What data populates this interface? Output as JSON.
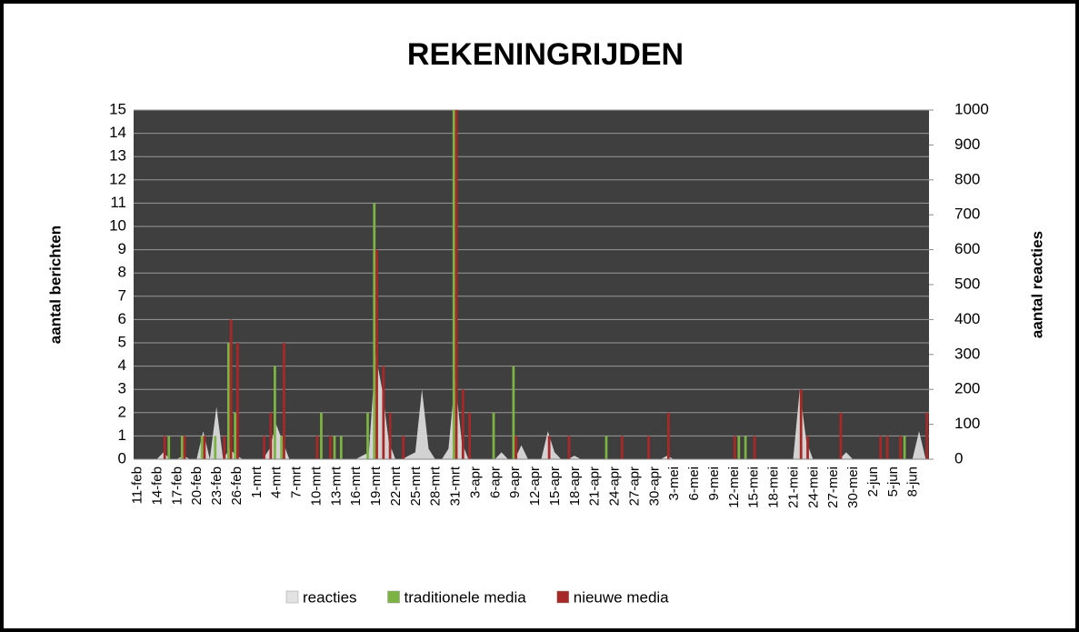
{
  "chart_data": {
    "type": "bar",
    "title": "REKENINGRIJDEN",
    "y_label": "aantal berichten",
    "y2_label": "aantal reacties",
    "categories": [
      "11-feb",
      null,
      null,
      "14-feb",
      null,
      null,
      "17-feb",
      null,
      null,
      "20-feb",
      null,
      null,
      "23-feb",
      null,
      null,
      "26-feb",
      null,
      null,
      "1-mrt",
      null,
      null,
      "4-mrt",
      null,
      null,
      "7-mrt",
      null,
      null,
      "10-mrt",
      null,
      null,
      "13-mrt",
      null,
      null,
      "16-mrt",
      null,
      null,
      "19-mrt",
      null,
      null,
      "22-mrt",
      null,
      null,
      "25-mrt",
      null,
      null,
      "28-mrt",
      null,
      null,
      "31-mrt",
      null,
      null,
      "3-apr",
      null,
      null,
      "6-apr",
      null,
      null,
      "9-apr",
      null,
      null,
      "12-apr",
      null,
      null,
      "15-apr",
      null,
      null,
      "18-apr",
      null,
      null,
      "21-apr",
      null,
      null,
      "24-apr",
      null,
      null,
      "27-apr",
      null,
      null,
      "30-apr",
      null,
      null,
      "3-mei",
      null,
      null,
      "6-mei",
      null,
      null,
      "9-mei",
      null,
      null,
      "12-mei",
      null,
      null,
      "15-mei",
      null,
      null,
      "18-mei",
      null,
      null,
      "21-mei",
      null,
      null,
      "24-mei",
      null,
      null,
      "27-mei",
      null,
      null,
      "30-mei",
      null,
      null,
      "2-jun",
      null,
      null,
      "5-jun",
      null,
      null,
      "8-jun",
      null,
      null
    ],
    "series": [
      {
        "name": "reacties",
        "color": "#e2e2e2",
        "axis": "y2",
        "values": [
          0,
          0,
          0,
          0,
          20,
          0,
          0,
          10,
          0,
          0,
          80,
          0,
          150,
          0,
          30,
          10,
          0,
          0,
          0,
          0,
          30,
          100,
          50,
          0,
          0,
          0,
          0,
          0,
          0,
          0,
          0,
          0,
          0,
          0,
          10,
          20,
          300,
          200,
          50,
          0,
          0,
          10,
          20,
          200,
          30,
          0,
          0,
          30,
          230,
          50,
          0,
          0,
          0,
          0,
          0,
          20,
          0,
          0,
          40,
          0,
          0,
          0,
          80,
          20,
          0,
          0,
          10,
          0,
          0,
          0,
          0,
          0,
          0,
          0,
          0,
          0,
          0,
          0,
          0,
          0,
          10,
          0,
          0,
          0,
          0,
          0,
          0,
          0,
          0,
          0,
          0,
          0,
          0,
          0,
          0,
          0,
          0,
          0,
          0,
          0,
          200,
          50,
          0,
          0,
          0,
          0,
          0,
          20,
          0,
          0,
          0,
          0,
          0,
          0,
          0,
          0,
          0,
          0,
          80,
          0
        ]
      },
      {
        "name": "traditionele media",
        "color": "#7cb342",
        "values": [
          0,
          0,
          0,
          0,
          0,
          1,
          0,
          1,
          0,
          0,
          1,
          0,
          1,
          0,
          5,
          2,
          0,
          0,
          0,
          0,
          0,
          4,
          1,
          0,
          0,
          0,
          0,
          0,
          2,
          0,
          1,
          1,
          0,
          0,
          0,
          2,
          11,
          0,
          0,
          0,
          0,
          0,
          0,
          0,
          0,
          0,
          0,
          0,
          15,
          0,
          0,
          0,
          0,
          0,
          2,
          0,
          0,
          4,
          0,
          0,
          0,
          0,
          0,
          0,
          0,
          0,
          0,
          0,
          0,
          0,
          0,
          1,
          0,
          0,
          0,
          0,
          0,
          0,
          0,
          0,
          0,
          0,
          0,
          0,
          0,
          0,
          0,
          0,
          0,
          0,
          0,
          1,
          1,
          0,
          0,
          0,
          0,
          0,
          0,
          0,
          0,
          0,
          0,
          0,
          0,
          0,
          0,
          0,
          0,
          0,
          0,
          0,
          0,
          0,
          0,
          0,
          1,
          0,
          0,
          0
        ]
      },
      {
        "name": "nieuwe media",
        "color": "#a82828",
        "values": [
          0,
          0,
          0,
          0,
          1,
          0,
          0,
          1,
          0,
          0,
          1,
          0,
          0,
          1,
          6,
          5,
          0,
          0,
          0,
          1,
          2,
          0,
          5,
          0,
          0,
          0,
          0,
          1,
          0,
          1,
          0,
          0,
          0,
          0,
          0,
          0,
          9,
          4,
          2,
          0,
          1,
          0,
          0,
          0,
          0,
          0,
          0,
          0,
          15,
          3,
          2,
          0,
          0,
          0,
          0,
          0,
          0,
          1,
          0,
          0,
          0,
          0,
          1,
          0,
          0,
          1,
          0,
          0,
          0,
          0,
          0,
          0,
          0,
          1,
          0,
          0,
          0,
          1,
          0,
          0,
          2,
          0,
          0,
          0,
          0,
          0,
          0,
          0,
          0,
          0,
          1,
          0,
          0,
          1,
          0,
          0,
          0,
          0,
          0,
          0,
          3,
          1,
          0,
          0,
          0,
          0,
          2,
          0,
          0,
          0,
          0,
          0,
          1,
          1,
          0,
          1,
          0,
          0,
          0,
          2
        ]
      }
    ],
    "ylim": [
      0,
      15
    ],
    "yticks": [
      0,
      1,
      2,
      3,
      4,
      5,
      6,
      7,
      8,
      9,
      10,
      11,
      12,
      13,
      14,
      15
    ],
    "y2lim": [
      0,
      1000
    ],
    "y2ticks": [
      0,
      100,
      200,
      300,
      400,
      500,
      600,
      700,
      800,
      900,
      1000
    ],
    "grid": true,
    "legend": "bottom"
  }
}
